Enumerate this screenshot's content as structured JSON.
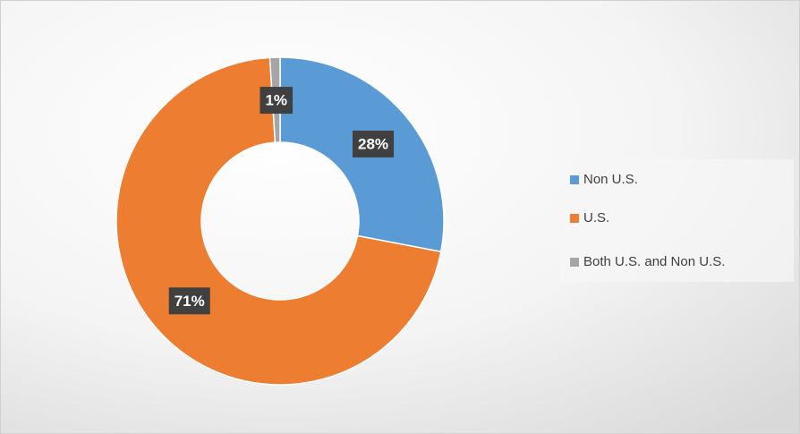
{
  "chart_data": {
    "type": "donut",
    "categories": [
      "Non U.S.",
      "U.S.",
      "Both U.S. and Non U.S."
    ],
    "values": [
      28,
      71,
      1
    ],
    "value_labels": [
      "28%",
      "71%",
      "1%"
    ],
    "colors": [
      "#5b9bd5",
      "#ed7d31",
      "#a5a5a5"
    ],
    "legend": "right"
  }
}
